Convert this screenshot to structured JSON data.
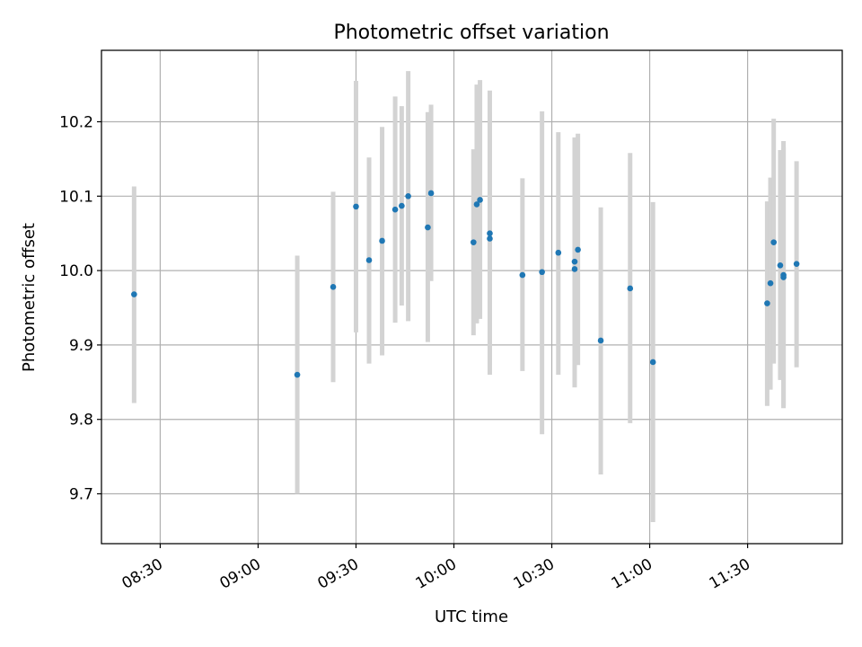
{
  "chart_data": {
    "type": "scatter",
    "title": "Photometric offset variation",
    "xlabel": "UTC time",
    "ylabel": "Photometric offset",
    "grid": true,
    "xlim": [
      "08:12",
      "11:59"
    ],
    "ylim": [
      9.633,
      10.296
    ],
    "xticks": [
      "08:30",
      "09:00",
      "09:30",
      "10:00",
      "10:30",
      "11:00",
      "11:30"
    ],
    "yticks": [
      9.7,
      9.8,
      9.9,
      10.0,
      10.1,
      10.2
    ],
    "ytick_labels": [
      "9.7",
      "9.8",
      "9.9",
      "10.0",
      "10.1",
      "10.2"
    ],
    "colors": {
      "point": "#1f77b4",
      "errorbar": "#d3d3d3",
      "grid": "#b0b0b0"
    },
    "points": [
      {
        "x": "08:22",
        "y": 9.968,
        "err_low": 9.822,
        "err_high": 10.113
      },
      {
        "x": "09:12",
        "y": 9.86,
        "err_low": 9.7,
        "err_high": 10.02
      },
      {
        "x": "09:23",
        "y": 9.978,
        "err_low": 9.85,
        "err_high": 10.106
      },
      {
        "x": "09:30",
        "y": 10.086,
        "err_low": 9.917,
        "err_high": 10.255
      },
      {
        "x": "09:34",
        "y": 10.014,
        "err_low": 9.875,
        "err_high": 10.152
      },
      {
        "x": "09:38",
        "y": 10.04,
        "err_low": 9.886,
        "err_high": 10.193
      },
      {
        "x": "09:42",
        "y": 10.082,
        "err_low": 9.93,
        "err_high": 10.234
      },
      {
        "x": "09:44",
        "y": 10.087,
        "err_low": 9.953,
        "err_high": 10.221
      },
      {
        "x": "09:46",
        "y": 10.1,
        "err_low": 9.932,
        "err_high": 10.268
      },
      {
        "x": "09:52",
        "y": 10.058,
        "err_low": 9.904,
        "err_high": 10.213
      },
      {
        "x": "09:53",
        "y": 10.104,
        "err_low": 9.986,
        "err_high": 10.223
      },
      {
        "x": "10:06",
        "y": 10.038,
        "err_low": 9.913,
        "err_high": 10.163
      },
      {
        "x": "10:07",
        "y": 10.089,
        "err_low": 9.929,
        "err_high": 10.25
      },
      {
        "x": "10:08",
        "y": 10.095,
        "err_low": 9.935,
        "err_high": 10.256
      },
      {
        "x": "10:11",
        "y": 10.043,
        "err_low": 9.873,
        "err_high": 10.213
      },
      {
        "x": "10:11",
        "y": 10.05,
        "err_low": 9.86,
        "err_high": 10.242
      },
      {
        "x": "10:21",
        "y": 9.994,
        "err_low": 9.865,
        "err_high": 10.124
      },
      {
        "x": "10:27",
        "y": 9.998,
        "err_low": 9.78,
        "err_high": 10.214
      },
      {
        "x": "10:32",
        "y": 10.024,
        "err_low": 9.86,
        "err_high": 10.186
      },
      {
        "x": "10:37",
        "y": 10.002,
        "err_low": 9.843,
        "err_high": 10.162
      },
      {
        "x": "10:37",
        "y": 10.012,
        "err_low": 9.845,
        "err_high": 10.179
      },
      {
        "x": "10:38",
        "y": 10.028,
        "err_low": 9.873,
        "err_high": 10.184
      },
      {
        "x": "10:45",
        "y": 9.906,
        "err_low": 9.726,
        "err_high": 10.085
      },
      {
        "x": "10:54",
        "y": 9.976,
        "err_low": 9.795,
        "err_high": 10.158
      },
      {
        "x": "11:01",
        "y": 9.877,
        "err_low": 9.662,
        "err_high": 10.092
      },
      {
        "x": "11:36",
        "y": 9.956,
        "err_low": 9.818,
        "err_high": 10.093
      },
      {
        "x": "11:37",
        "y": 9.983,
        "err_low": 9.84,
        "err_high": 10.125
      },
      {
        "x": "11:38",
        "y": 10.038,
        "err_low": 9.875,
        "err_high": 10.204
      },
      {
        "x": "11:40",
        "y": 10.007,
        "err_low": 9.853,
        "err_high": 10.162
      },
      {
        "x": "11:41",
        "y": 9.991,
        "err_low": 9.818,
        "err_high": 10.166
      },
      {
        "x": "11:41",
        "y": 9.994,
        "err_low": 9.815,
        "err_high": 10.174
      },
      {
        "x": "11:45",
        "y": 10.009,
        "err_low": 9.87,
        "err_high": 10.147
      }
    ]
  }
}
